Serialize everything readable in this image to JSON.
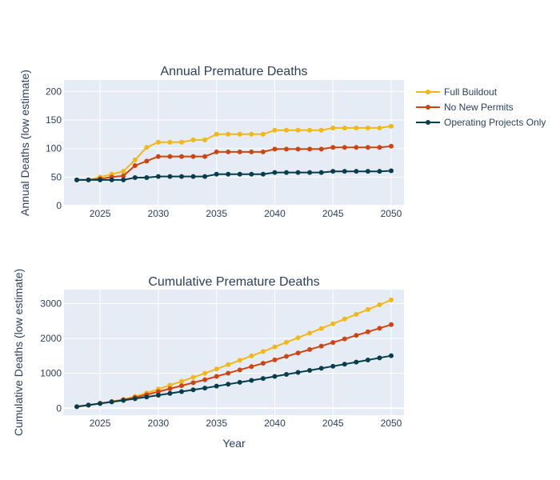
{
  "chart_data": [
    {
      "type": "line",
      "title": "Annual Premature Deaths",
      "xlabel": "",
      "ylabel": "Annual Deaths (low estimate)",
      "xlim": [
        2021.9,
        2051.1
      ],
      "ylim": [
        0,
        220
      ],
      "xticks": [
        2025,
        2030,
        2035,
        2040,
        2045,
        2050
      ],
      "yticks": [
        0,
        50,
        100,
        150,
        200
      ],
      "grid": true,
      "x": [
        2023,
        2024,
        2025,
        2026,
        2027,
        2028,
        2029,
        2030,
        2031,
        2032,
        2033,
        2034,
        2035,
        2036,
        2037,
        2038,
        2039,
        2040,
        2041,
        2042,
        2043,
        2044,
        2045,
        2046,
        2047,
        2048,
        2049,
        2050
      ],
      "series": [
        {
          "name": "Full Buildout",
          "color": "#f2b718",
          "values": [
            45,
            45,
            50,
            55,
            60,
            80,
            102,
            111,
            111,
            111,
            115,
            115,
            125,
            125,
            125,
            125,
            125,
            132,
            132,
            132,
            132,
            132,
            136,
            136,
            136,
            136,
            136,
            139
          ]
        },
        {
          "name": "No New Permits",
          "color": "#cf4411",
          "values": [
            45,
            45,
            47,
            50,
            52,
            70,
            78,
            86,
            86,
            86,
            86,
            86,
            94,
            94,
            94,
            94,
            94,
            99,
            99,
            99,
            99,
            99,
            102,
            102,
            102,
            102,
            102,
            104
          ]
        },
        {
          "name": "Operating Projects Only",
          "color": "#083d4d",
          "values": [
            45,
            45,
            45,
            45,
            45,
            49,
            49,
            51,
            51,
            51,
            51,
            51,
            55,
            55,
            55,
            55,
            55,
            58,
            58,
            58,
            58,
            58,
            60,
            60,
            60,
            60,
            60,
            61
          ]
        }
      ]
    },
    {
      "type": "line",
      "title": "Cumulative Premature Deaths",
      "xlabel": "Year",
      "ylabel": "Cumulative Deaths (low estimate)",
      "xlim": [
        2021.9,
        2051.1
      ],
      "ylim": [
        -200,
        3400
      ],
      "xticks": [
        2025,
        2030,
        2035,
        2040,
        2045,
        2050
      ],
      "yticks": [
        0,
        1000,
        2000,
        3000
      ],
      "grid": true,
      "x": [
        2023,
        2024,
        2025,
        2026,
        2027,
        2028,
        2029,
        2030,
        2031,
        2032,
        2033,
        2034,
        2035,
        2036,
        2037,
        2038,
        2039,
        2040,
        2041,
        2042,
        2043,
        2044,
        2045,
        2046,
        2047,
        2048,
        2049,
        2050
      ],
      "series": [
        {
          "name": "Full Buildout",
          "color": "#f2b718",
          "values": [
            45,
            90,
            140,
            195,
            255,
            335,
            437,
            548,
            659,
            770,
            885,
            1000,
            1125,
            1250,
            1375,
            1500,
            1625,
            1757,
            1889,
            2021,
            2153,
            2285,
            2421,
            2557,
            2693,
            2829,
            2965,
            3104
          ]
        },
        {
          "name": "No New Permits",
          "color": "#cf4411",
          "values": [
            45,
            90,
            137,
            187,
            239,
            309,
            387,
            473,
            559,
            645,
            731,
            817,
            911,
            1005,
            1099,
            1193,
            1287,
            1386,
            1485,
            1584,
            1683,
            1782,
            1884,
            1986,
            2088,
            2190,
            2292,
            2396
          ]
        },
        {
          "name": "Operating Projects Only",
          "color": "#083d4d",
          "values": [
            45,
            90,
            135,
            180,
            225,
            274,
            323,
            374,
            425,
            476,
            527,
            578,
            633,
            688,
            743,
            798,
            853,
            911,
            969,
            1027,
            1085,
            1143,
            1203,
            1263,
            1323,
            1383,
            1443,
            1504
          ]
        }
      ]
    }
  ],
  "legend": {
    "items": [
      "Full Buildout",
      "No New Permits",
      "Operating Projects Only"
    ]
  },
  "colors": {
    "plot_bg": "#e5ecf6",
    "grid": "#ffffff",
    "text": "#2a3f5f"
  }
}
